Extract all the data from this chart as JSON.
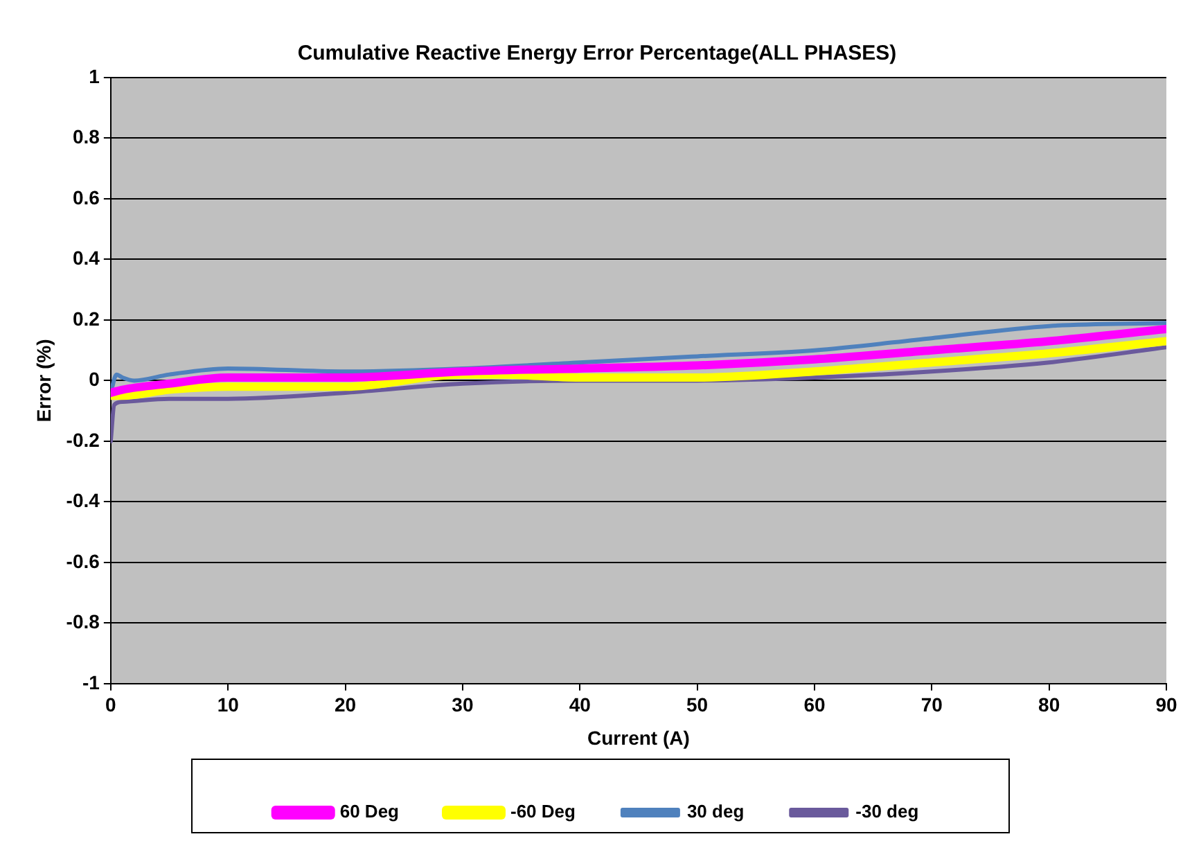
{
  "chart_data": {
    "type": "line",
    "title": "Cumulative Reactive Energy Error Percentage(ALL PHASES)",
    "xlabel": "Current (A)",
    "ylabel": "Error (%)",
    "xlim": [
      0,
      90
    ],
    "xticks": [
      0,
      10,
      20,
      30,
      40,
      50,
      60,
      70,
      80,
      90
    ],
    "ylim": [
      -1,
      1
    ],
    "yticks": [
      -1,
      -0.8,
      -0.6,
      -0.4,
      -0.2,
      0,
      0.2,
      0.4,
      0.6,
      0.8,
      1
    ],
    "grid": "y",
    "legend": "bottom",
    "marker": "none",
    "line_style": "solid",
    "series": [
      {
        "name": "60 Deg",
        "color": "#ff00ff",
        "x": [
          0,
          1,
          5,
          10,
          20,
          30,
          40,
          50,
          60,
          70,
          80,
          90
        ],
        "values": [
          -0.04,
          -0.03,
          -0.01,
          0.01,
          0.01,
          0.03,
          0.04,
          0.05,
          0.07,
          0.1,
          0.13,
          0.17
        ]
      },
      {
        "name": "-60 Deg",
        "color": "#ffff00",
        "x": [
          0,
          1,
          5,
          10,
          20,
          30,
          33,
          40,
          50,
          60,
          70,
          80,
          90
        ],
        "values": [
          -0.05,
          -0.05,
          -0.03,
          -0.02,
          -0.02,
          0.02,
          0.02,
          0.01,
          0.01,
          0.03,
          0.06,
          0.09,
          0.13
        ]
      },
      {
        "name": "30 deg",
        "color": "#4f81bd",
        "x": [
          0,
          0.5,
          1,
          2,
          5,
          10,
          20,
          30,
          40,
          50,
          60,
          70,
          80,
          90
        ],
        "values": [
          -0.04,
          0.02,
          0.01,
          0.0,
          0.02,
          0.04,
          0.03,
          0.04,
          0.06,
          0.08,
          0.1,
          0.14,
          0.18,
          0.19
        ]
      },
      {
        "name": "-30 deg",
        "color": "#6a5a9c",
        "x": [
          0,
          0.3,
          1,
          5,
          10,
          20,
          30,
          40,
          50,
          60,
          70,
          80,
          90
        ],
        "values": [
          -0.2,
          -0.08,
          -0.07,
          -0.06,
          -0.06,
          -0.04,
          -0.01,
          0.0,
          0.0,
          0.01,
          0.03,
          0.06,
          0.11
        ]
      }
    ]
  }
}
